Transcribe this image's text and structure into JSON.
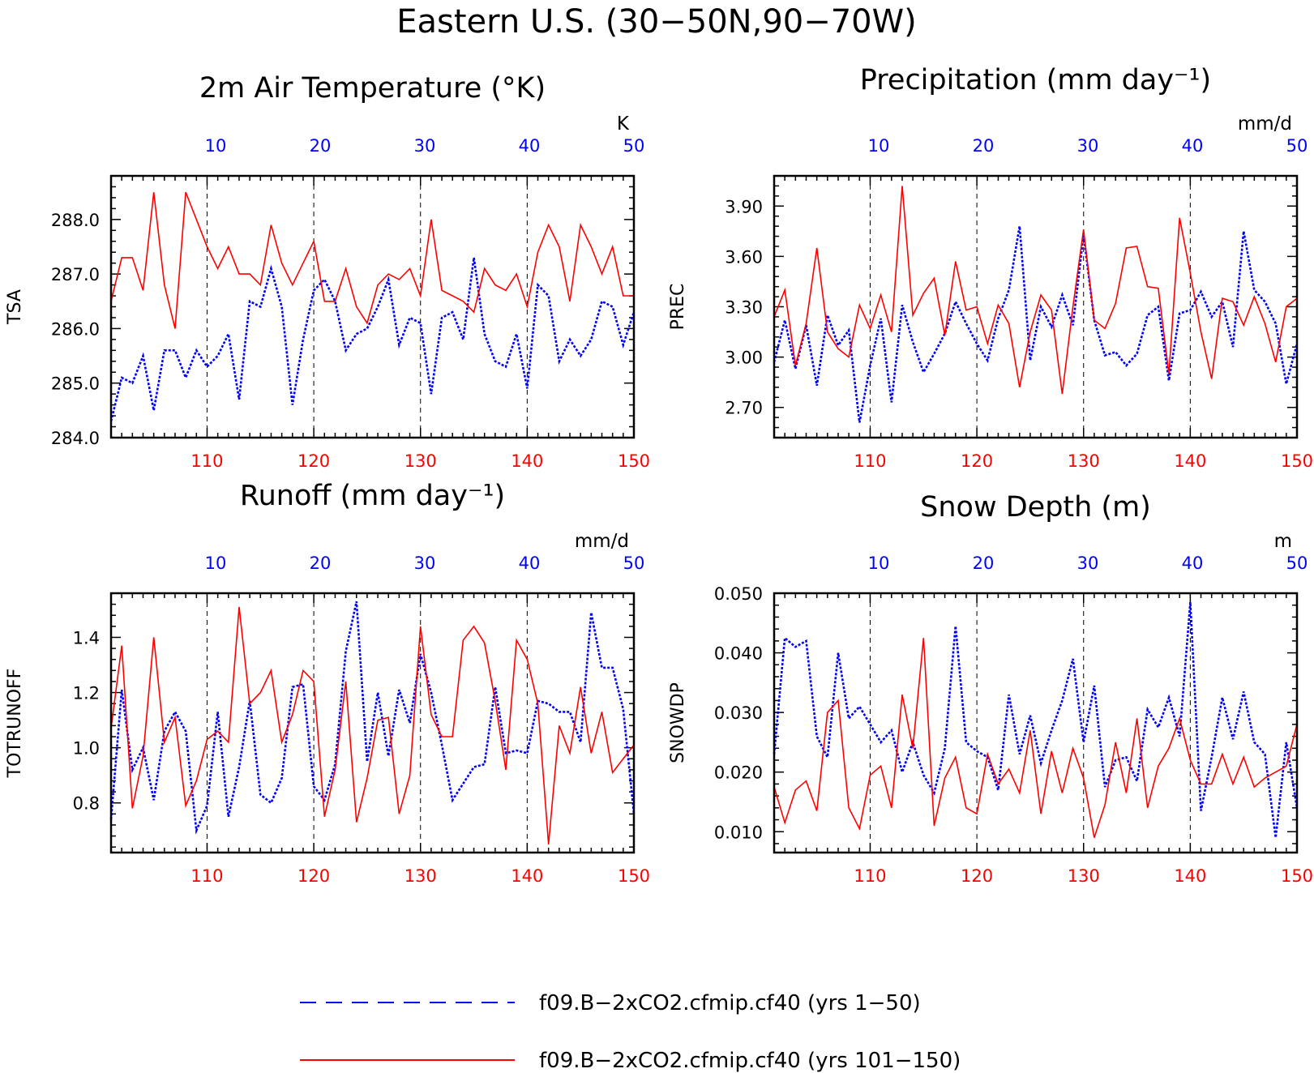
{
  "figure_title": "Eastern U.S. (30−50N,90−70W)",
  "colors": {
    "series_1_50": "#0000ff",
    "series_101_150": "#ff0000",
    "frame": "#000000"
  },
  "legend": {
    "entries": [
      {
        "label": "f09.B−2xCO2.cfmip.cf40 (yrs 1−50)",
        "color": "#0000ff",
        "style": "dashed"
      },
      {
        "label": "f09.B−2xCO2.cfmip.cf40 (yrs 101−150)",
        "color": "#ff0000",
        "style": "solid"
      }
    ]
  },
  "chart_data": [
    {
      "type": "line",
      "title": "2m Air Temperature (°K)",
      "ylabel": "TSA",
      "unit": "K",
      "ylim": [
        284.0,
        288.8
      ],
      "yticks": [
        284.0,
        285.0,
        286.0,
        287.0,
        288.0
      ],
      "ytick_labels": [
        "284.0",
        "285.0",
        "286.0",
        "287.0",
        "288.0"
      ],
      "bottom_x_range": [
        101,
        150
      ],
      "bottom_x_ticks": [
        "110",
        "120",
        "130",
        "140",
        "150"
      ],
      "top_x_range": [
        1,
        50
      ],
      "top_x_ticks": [
        "10",
        "20",
        "30",
        "40",
        "50"
      ],
      "grid": "vertical dashed at labeled ticks",
      "series": [
        {
          "values": [
            284.3,
            285.1,
            285.0,
            285.5,
            284.5,
            285.6,
            285.6,
            285.1,
            285.6,
            285.3,
            285.5,
            285.9,
            284.7,
            286.5,
            286.4,
            287.1,
            286.4,
            284.6,
            285.8,
            286.7,
            286.9,
            286.5,
            285.6,
            285.9,
            286.0,
            286.4,
            286.9,
            285.7,
            286.2,
            286.1,
            284.8,
            286.2,
            286.3,
            285.8,
            287.3,
            285.9,
            285.4,
            285.3,
            285.9,
            284.9,
            286.8,
            286.6,
            285.4,
            285.8,
            285.5,
            285.8,
            286.5,
            286.4,
            285.7,
            286.3
          ]
        },
        {
          "values": [
            286.5,
            287.3,
            287.3,
            286.7,
            288.5,
            286.8,
            286.0,
            288.5,
            288.0,
            287.5,
            287.1,
            287.5,
            287.0,
            287.0,
            286.8,
            287.9,
            287.2,
            286.8,
            287.2,
            287.6,
            286.5,
            286.5,
            287.1,
            286.4,
            286.1,
            286.8,
            287.0,
            286.9,
            287.1,
            286.6,
            288.0,
            286.7,
            286.6,
            286.5,
            286.3,
            287.1,
            286.8,
            286.7,
            287.0,
            286.4,
            287.4,
            287.9,
            287.5,
            286.5,
            287.9,
            287.5,
            287.0,
            287.5,
            286.6,
            286.6
          ]
        }
      ]
    },
    {
      "type": "line",
      "title": "Precipitation (mm day⁻¹)",
      "ylabel": "PREC",
      "unit": "mm/d",
      "ylim": [
        2.52,
        4.08
      ],
      "yticks": [
        2.7,
        3.0,
        3.3,
        3.6,
        3.9
      ],
      "ytick_labels": [
        "2.70",
        "3.00",
        "3.30",
        "3.60",
        "3.90"
      ],
      "bottom_x_range": [
        101,
        150
      ],
      "bottom_x_ticks": [
        "110",
        "120",
        "130",
        "140",
        "150"
      ],
      "top_x_range": [
        1,
        50
      ],
      "top_x_ticks": [
        "10",
        "20",
        "30",
        "40",
        "50"
      ],
      "grid": "vertical dashed at labeled ticks",
      "series": [
        {
          "values": [
            2.97,
            3.22,
            2.93,
            3.19,
            2.83,
            3.25,
            3.07,
            3.16,
            2.61,
            2.95,
            3.23,
            2.73,
            3.31,
            3.09,
            2.91,
            3.02,
            3.14,
            3.33,
            3.2,
            3.08,
            2.98,
            3.23,
            3.4,
            3.78,
            2.98,
            3.3,
            3.18,
            3.37,
            3.19,
            3.73,
            3.22,
            3.01,
            3.03,
            2.95,
            3.02,
            3.25,
            3.3,
            2.86,
            3.26,
            3.28,
            3.39,
            3.24,
            3.33,
            3.06,
            3.75,
            3.4,
            3.33,
            3.2,
            2.84,
            3.08
          ]
        },
        {
          "values": [
            3.24,
            3.4,
            2.95,
            3.2,
            3.65,
            3.15,
            3.05,
            3.0,
            3.31,
            3.17,
            3.37,
            3.15,
            4.02,
            3.25,
            3.38,
            3.47,
            3.13,
            3.57,
            3.28,
            3.3,
            3.08,
            3.31,
            3.2,
            2.82,
            3.15,
            3.37,
            3.28,
            2.78,
            3.3,
            3.76,
            3.22,
            3.17,
            3.32,
            3.65,
            3.66,
            3.42,
            3.41,
            2.9,
            3.83,
            3.5,
            3.15,
            2.87,
            3.35,
            3.33,
            3.19,
            3.36,
            3.2,
            2.97,
            3.3,
            3.35
          ]
        }
      ]
    },
    {
      "type": "line",
      "title": "Runoff (mm day⁻¹)",
      "ylabel": "TOTRUNOFF",
      "unit": "mm/d",
      "ylim": [
        0.62,
        1.56
      ],
      "yticks": [
        0.8,
        1.0,
        1.2,
        1.4
      ],
      "ytick_labels": [
        "0.8",
        "1.0",
        "1.2",
        "1.4"
      ],
      "bottom_x_range": [
        101,
        150
      ],
      "bottom_x_ticks": [
        "110",
        "120",
        "130",
        "140",
        "150"
      ],
      "top_x_range": [
        1,
        50
      ],
      "top_x_ticks": [
        "10",
        "20",
        "30",
        "40",
        "50"
      ],
      "grid": "vertical dashed at labeled ticks",
      "series": [
        {
          "values": [
            0.74,
            1.21,
            0.92,
            1.0,
            0.81,
            1.06,
            1.13,
            1.06,
            0.7,
            0.79,
            1.13,
            0.75,
            0.93,
            1.17,
            0.83,
            0.8,
            0.89,
            1.22,
            1.23,
            0.86,
            0.81,
            0.94,
            1.35,
            1.53,
            0.95,
            1.2,
            0.97,
            1.21,
            1.09,
            1.34,
            1.2,
            1.01,
            0.81,
            0.87,
            0.93,
            0.94,
            1.22,
            0.98,
            0.99,
            0.98,
            1.17,
            1.16,
            1.13,
            1.13,
            1.02,
            1.49,
            1.29,
            1.29,
            1.14,
            0.76
          ]
        },
        {
          "values": [
            1.07,
            1.37,
            0.78,
            0.97,
            1.4,
            1.02,
            1.11,
            0.79,
            0.88,
            1.03,
            1.06,
            1.02,
            1.51,
            1.16,
            1.2,
            1.28,
            1.02,
            1.12,
            1.28,
            1.24,
            0.75,
            0.92,
            1.24,
            0.73,
            0.89,
            1.1,
            1.11,
            0.76,
            0.9,
            1.44,
            1.12,
            1.04,
            1.04,
            1.39,
            1.44,
            1.38,
            1.17,
            0.92,
            1.39,
            1.32,
            1.16,
            0.65,
            1.08,
            0.98,
            1.22,
            0.98,
            1.13,
            0.91,
            0.96,
            1.01
          ]
        }
      ]
    },
    {
      "type": "line",
      "title": "Snow Depth (m)",
      "ylabel": "SNOWDP",
      "unit": "m",
      "ylim": [
        0.0065,
        0.05
      ],
      "yticks": [
        0.01,
        0.02,
        0.03,
        0.04,
        0.05
      ],
      "ytick_labels": [
        "0.010",
        "0.020",
        "0.030",
        "0.040",
        "0.050"
      ],
      "bottom_x_range": [
        101,
        150
      ],
      "bottom_x_ticks": [
        "110",
        "120",
        "130",
        "140",
        "150"
      ],
      "top_x_range": [
        1,
        50
      ],
      "top_x_ticks": [
        "10",
        "20",
        "30",
        "40",
        "50"
      ],
      "grid": "vertical dashed at labeled ticks",
      "series": [
        {
          "values": [
            0.023,
            0.0425,
            0.041,
            0.042,
            0.026,
            0.0225,
            0.04,
            0.029,
            0.031,
            0.028,
            0.025,
            0.027,
            0.02,
            0.025,
            0.0195,
            0.0165,
            0.024,
            0.0445,
            0.025,
            0.0235,
            0.0225,
            0.017,
            0.033,
            0.023,
            0.0295,
            0.0215,
            0.027,
            0.032,
            0.039,
            0.025,
            0.0345,
            0.0175,
            0.022,
            0.0225,
            0.0185,
            0.0305,
            0.0275,
            0.0325,
            0.026,
            0.0485,
            0.0135,
            0.0225,
            0.0325,
            0.0255,
            0.0335,
            0.025,
            0.023,
            0.009,
            0.025,
            0.014
          ]
        },
        {
          "values": [
            0.0175,
            0.0115,
            0.017,
            0.0185,
            0.0135,
            0.03,
            0.032,
            0.014,
            0.0105,
            0.0195,
            0.021,
            0.014,
            0.033,
            0.024,
            0.0425,
            0.011,
            0.019,
            0.0225,
            0.014,
            0.013,
            0.023,
            0.018,
            0.0205,
            0.0165,
            0.027,
            0.013,
            0.0235,
            0.0165,
            0.024,
            0.019,
            0.009,
            0.0145,
            0.025,
            0.0165,
            0.029,
            0.014,
            0.021,
            0.024,
            0.029,
            0.022,
            0.018,
            0.018,
            0.023,
            0.018,
            0.0225,
            0.0175,
            0.019,
            0.02,
            0.021,
            0.028
          ]
        }
      ]
    }
  ]
}
